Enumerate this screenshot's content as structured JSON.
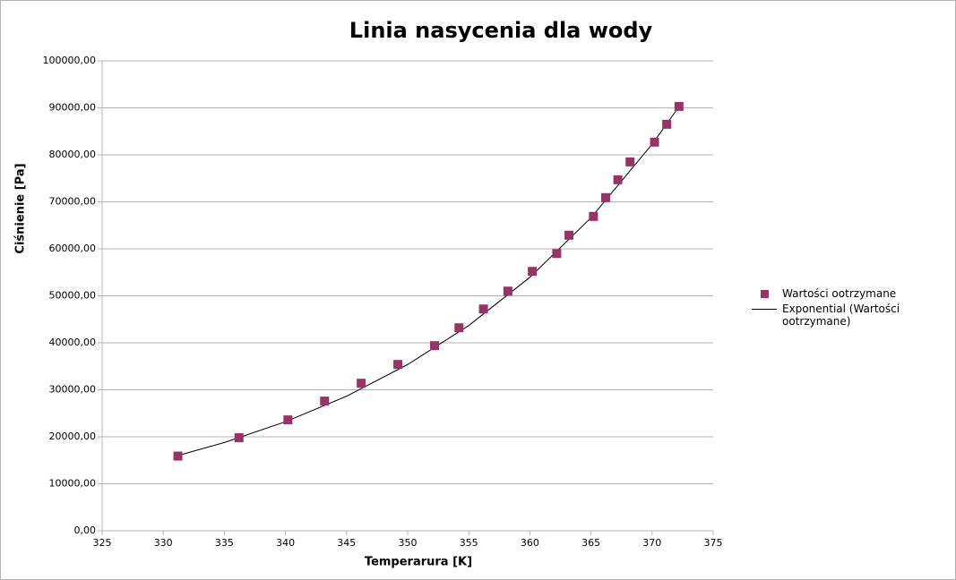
{
  "chart_data": {
    "type": "scatter",
    "title": "Linia nasycenia dla wody",
    "x_label": "Temperarura [K]",
    "y_label": "Ciśnienie [Pa]",
    "xlim": [
      325,
      375
    ],
    "xticks": [
      325,
      330,
      335,
      340,
      345,
      350,
      355,
      360,
      365,
      370,
      375
    ],
    "ylim": [
      0,
      100000
    ],
    "yticks": [
      {
        "value": 0,
        "label": "0,00"
      },
      {
        "value": 10000,
        "label": "10000,00"
      },
      {
        "value": 20000,
        "label": "20000,00"
      },
      {
        "value": 30000,
        "label": "30000,00"
      },
      {
        "value": 40000,
        "label": "40000,00"
      },
      {
        "value": 50000,
        "label": "50000,00"
      },
      {
        "value": 60000,
        "label": "60000,00"
      },
      {
        "value": 70000,
        "label": "70000,00"
      },
      {
        "value": 80000,
        "label": "80000,00"
      },
      {
        "value": 90000,
        "label": "90000,00"
      },
      {
        "value": 100000,
        "label": "100000,00"
      }
    ],
    "grid": true,
    "legend": "right",
    "series": [
      {
        "name": "Wartości ootrzymane",
        "type": "scatter",
        "color": "#993366",
        "x": [
          331.2,
          336.2,
          340.2,
          343.2,
          346.2,
          349.2,
          352.2,
          354.2,
          356.2,
          358.2,
          360.2,
          362.2,
          363.2,
          365.2,
          366.2,
          367.2,
          368.2,
          370.2,
          371.2,
          372.2
        ],
        "values": [
          15900,
          19800,
          23600,
          27600,
          31400,
          35400,
          39400,
          43200,
          47200,
          51000,
          55200,
          59000,
          62900,
          66900,
          70900,
          74700,
          78500,
          82700,
          86500,
          90300
        ]
      },
      {
        "name": "Exponential (Wartości ootrzymane)",
        "type": "line",
        "color": "#000000",
        "x": [
          331.2,
          335,
          340,
          345,
          350,
          355,
          360,
          365,
          370,
          372.2
        ],
        "values": [
          16000,
          18780,
          23200,
          28640,
          35380,
          43680,
          53940,
          66610,
          82260,
          90240
        ]
      }
    ]
  }
}
